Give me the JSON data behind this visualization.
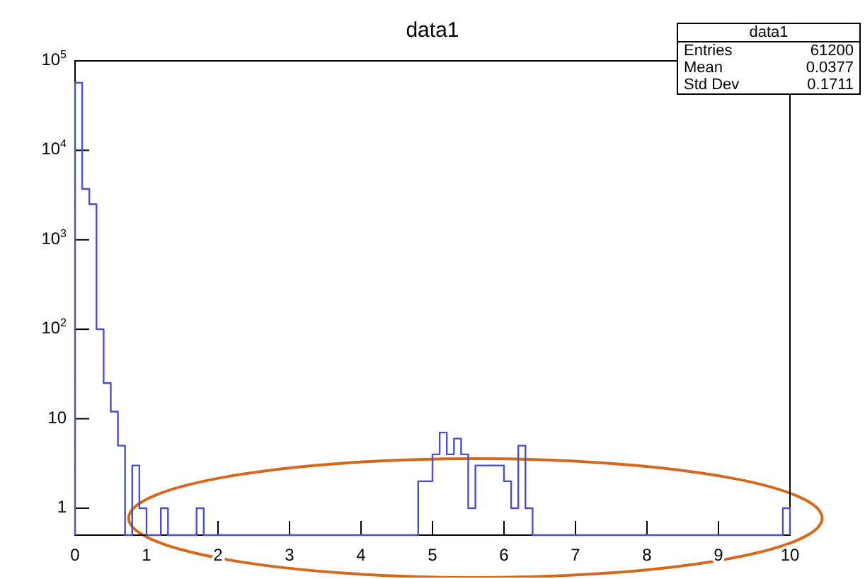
{
  "chart_data": {
    "type": "histogram",
    "title": "data1",
    "bins": [
      0,
      0.1,
      0.2,
      0.3,
      0.4,
      0.5,
      0.6,
      0.7,
      0.8,
      0.9,
      1,
      1.1,
      1.2,
      1.3,
      1.4,
      1.5,
      1.6,
      1.7,
      1.8,
      1.9,
      2,
      2.1,
      2.2,
      2.3,
      2.4,
      2.5,
      2.6,
      2.7,
      2.8,
      2.9,
      3,
      3.1,
      3.2,
      3.3,
      3.4,
      3.5,
      3.6,
      3.7,
      3.8,
      3.9,
      4,
      4.1,
      4.2,
      4.3,
      4.4,
      4.5,
      4.6,
      4.7,
      4.8,
      4.9,
      5,
      5.1,
      5.2,
      5.3,
      5.4,
      5.5,
      5.6,
      5.7,
      5.8,
      5.9,
      6,
      6.1,
      6.2,
      6.3,
      6.4,
      6.5,
      6.6,
      6.7,
      6.8,
      6.9,
      7,
      7.1,
      7.2,
      7.3,
      7.4,
      7.5,
      7.6,
      7.7,
      7.8,
      7.9,
      8,
      8.1,
      8.2,
      8.3,
      8.4,
      8.5,
      8.6,
      8.7,
      8.8,
      8.9,
      9,
      9.1,
      9.2,
      9.3,
      9.4,
      9.5,
      9.6,
      9.7,
      9.8,
      9.9,
      10
    ],
    "values": [
      57000,
      3700,
      2500,
      100,
      25,
      12,
      5,
      null,
      3,
      1,
      null,
      null,
      1,
      null,
      null,
      null,
      null,
      1,
      null,
      null,
      null,
      null,
      null,
      null,
      null,
      null,
      null,
      null,
      null,
      null,
      null,
      null,
      null,
      null,
      null,
      null,
      null,
      null,
      null,
      null,
      null,
      null,
      null,
      null,
      null,
      null,
      null,
      null,
      2,
      2,
      4,
      7,
      4,
      6,
      4,
      1,
      3,
      3,
      3,
      3,
      2,
      1,
      5,
      1,
      null,
      null,
      null,
      null,
      null,
      null,
      null,
      null,
      null,
      null,
      null,
      null,
      null,
      null,
      null,
      null,
      null,
      null,
      null,
      null,
      null,
      null,
      null,
      null,
      null,
      null,
      null,
      null,
      null,
      null,
      null,
      null,
      null,
      null,
      null,
      1
    ],
    "color": "#4b4fc4",
    "log": "y",
    "xlim": [
      0,
      10
    ],
    "xticks": [
      0,
      1,
      2,
      3,
      4,
      5,
      6,
      7,
      8,
      9,
      10
    ],
    "ylim": [
      0.5,
      100000
    ],
    "yticks": [
      1,
      10,
      {
        "value": 100,
        "label": "10$^{2}$"
      },
      {
        "value": 1000,
        "label": "10$^{3}$"
      },
      {
        "value": 10000,
        "label": "10$^{4}$"
      },
      {
        "value": 100000,
        "label": "10$^{5}$"
      }
    ],
    "grid": false,
    "annotations": [
      "data1",
      "Entries",
      "61200",
      "Mean",
      "0.0377",
      "Std Dev",
      "0.1711"
    ]
  }
}
